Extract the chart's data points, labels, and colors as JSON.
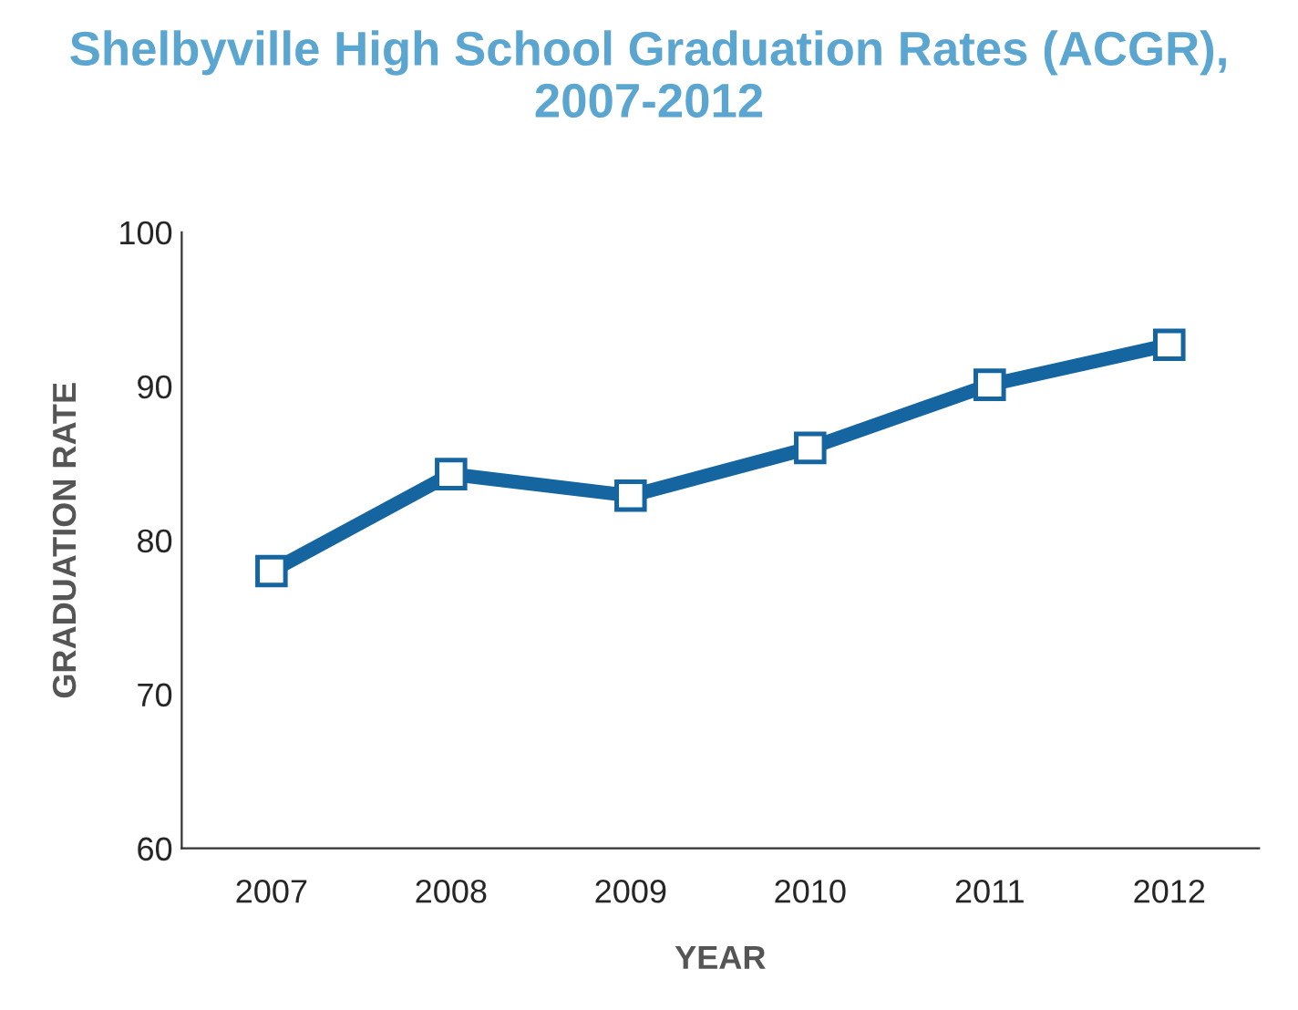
{
  "chart_data": {
    "type": "line",
    "title": "Shelbyville High School Graduation Rates (ACGR),\n2007-2012",
    "xlabel": "YEAR",
    "ylabel": "GRADUATION RATE",
    "categories": [
      "2007",
      "2008",
      "2009",
      "2010",
      "2011",
      "2012"
    ],
    "series": [
      {
        "color": "#1565a0",
        "values": [
          78,
          84.3,
          82.9,
          86,
          90.1,
          92.7
        ]
      }
    ],
    "ylim": [
      60,
      100
    ],
    "yticks": [
      60,
      70,
      80,
      90,
      100
    ],
    "grid": false,
    "legend": false,
    "marker": "square",
    "line_style": "solid"
  }
}
